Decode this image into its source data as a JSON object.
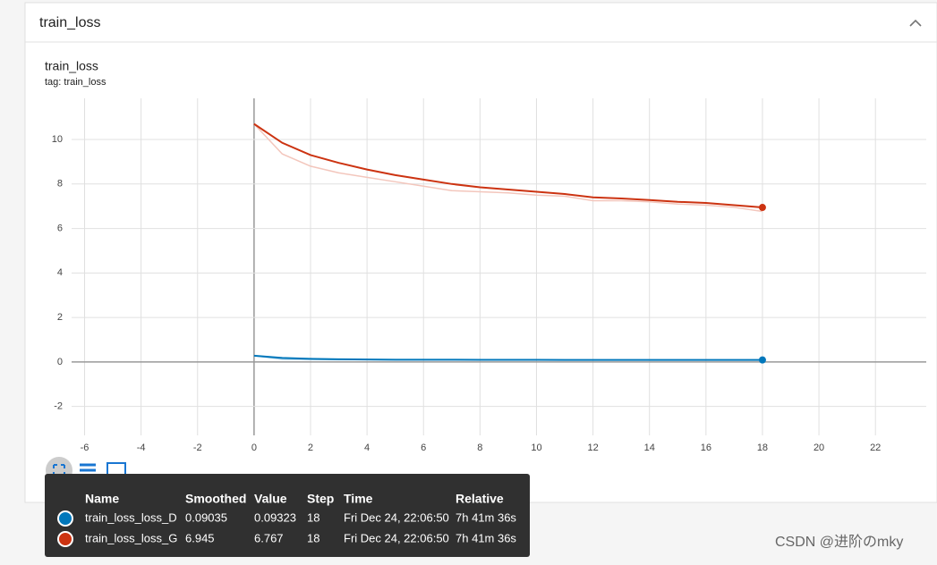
{
  "panel": {
    "title": "train_loss"
  },
  "chart_data": {
    "type": "line",
    "title": "train_loss",
    "subtitle": "tag: train_loss",
    "x": [
      0,
      1,
      2,
      3,
      4,
      5,
      6,
      7,
      8,
      9,
      10,
      11,
      12,
      13,
      14,
      15,
      16,
      17,
      18
    ],
    "series": [
      {
        "name": "train_loss_loss_D",
        "color": "#0077bb",
        "raw_color": "#a9d0e8",
        "values": [
          0.28,
          0.18,
          0.14,
          0.12,
          0.11,
          0.1,
          0.1,
          0.1,
          0.095,
          0.095,
          0.095,
          0.093,
          0.093,
          0.093,
          0.092,
          0.092,
          0.091,
          0.091,
          0.09035
        ],
        "raw_values": [
          0.28,
          0.12,
          0.11,
          0.1,
          0.1,
          0.095,
          0.095,
          0.095,
          0.094,
          0.094,
          0.094,
          0.093,
          0.093,
          0.093,
          0.093,
          0.093,
          0.093,
          0.093,
          0.09323
        ]
      },
      {
        "name": "train_loss_loss_G",
        "color": "#cc3311",
        "raw_color": "#f3c6bc",
        "values": [
          10.7,
          9.85,
          9.3,
          8.95,
          8.65,
          8.4,
          8.2,
          8.0,
          7.85,
          7.75,
          7.65,
          7.55,
          7.4,
          7.35,
          7.28,
          7.2,
          7.15,
          7.05,
          6.945
        ],
        "raw_values": [
          10.7,
          9.35,
          8.8,
          8.5,
          8.3,
          8.1,
          7.9,
          7.7,
          7.65,
          7.6,
          7.5,
          7.45,
          7.25,
          7.25,
          7.2,
          7.1,
          7.05,
          6.95,
          6.767
        ]
      }
    ],
    "xlim": [
      -6.46,
      23.8
    ],
    "ylim": [
      -3.3,
      11.85
    ],
    "xticks": [
      -6,
      -4,
      -2,
      0,
      2,
      4,
      6,
      8,
      10,
      12,
      14,
      16,
      18,
      20,
      22
    ],
    "yticks": [
      -2,
      0,
      2,
      4,
      6,
      8,
      10
    ],
    "grid": true
  },
  "tooltip": {
    "headers": [
      "Name",
      "Smoothed",
      "Value",
      "Step",
      "Time",
      "Relative"
    ],
    "rows": [
      {
        "time": "Fri Dec 24, 22:06:50",
        "relative": "7h 41m 36s"
      },
      {
        "time": "Fri Dec 24, 22:06:50",
        "relative": "7h 41m 36s"
      }
    ]
  },
  "watermark": "CSDN @进阶のmky"
}
